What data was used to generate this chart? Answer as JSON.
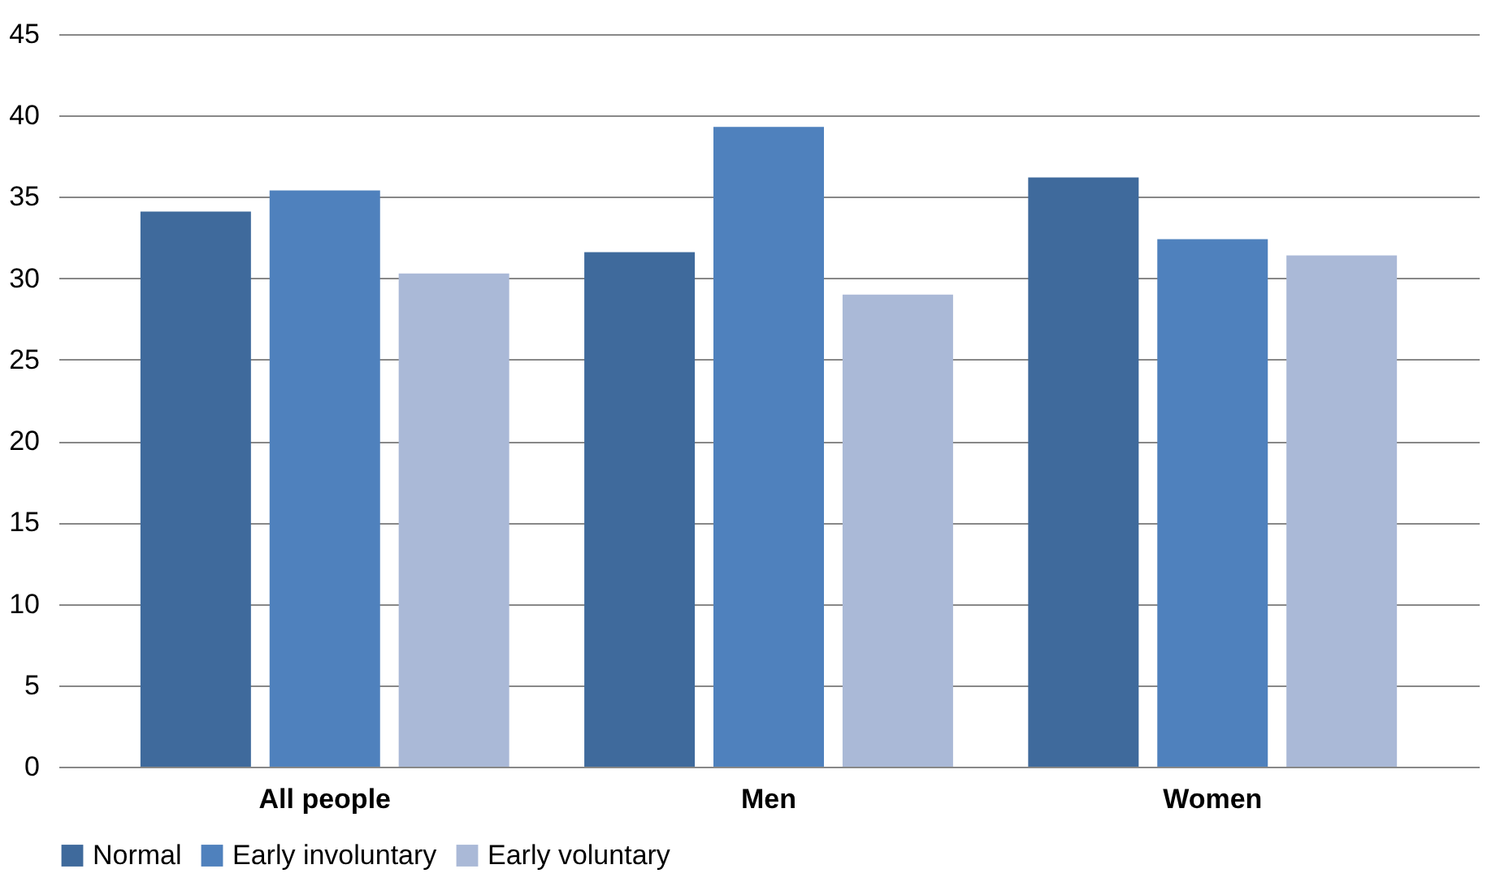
{
  "chart_data": {
    "type": "bar",
    "categories": [
      "All people",
      "Men",
      "Women"
    ],
    "series": [
      {
        "name": "Normal",
        "color": "#3f6a9c",
        "values": [
          34.1,
          31.6,
          36.2
        ]
      },
      {
        "name": "Early involuntary",
        "color": "#4f81bd",
        "values": [
          35.4,
          39.3,
          32.4
        ]
      },
      {
        "name": "Early voluntary",
        "color": "#aab9d7",
        "values": [
          30.3,
          29.0,
          31.4
        ]
      }
    ],
    "ylim": [
      0,
      45
    ],
    "yticks": [
      0,
      5,
      10,
      15,
      20,
      25,
      30,
      35,
      40,
      45
    ],
    "grid": "y",
    "legend": "bottom"
  }
}
